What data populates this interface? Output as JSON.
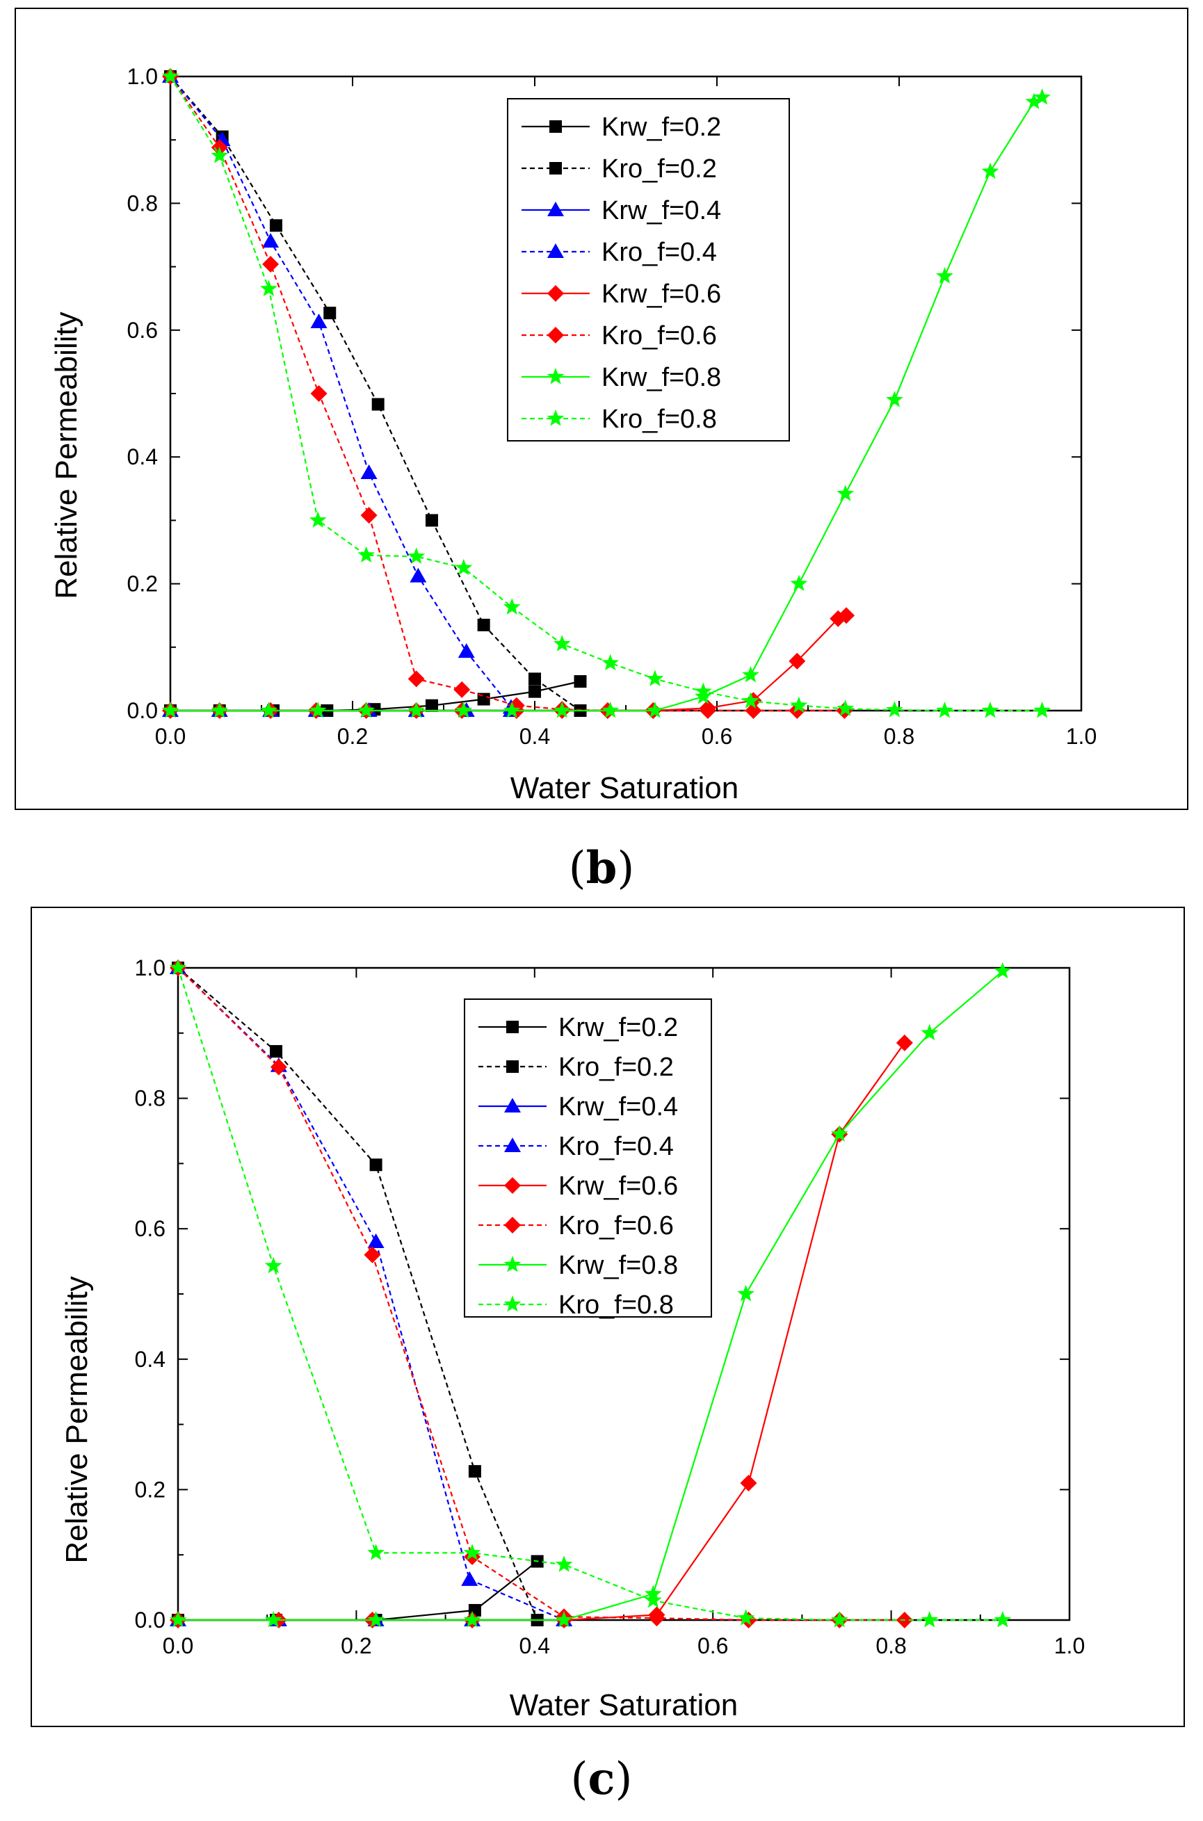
{
  "chart_data": [
    {
      "id": "b",
      "type": "line",
      "panel_label": "(b)",
      "panel_letter": "b",
      "xlabel": "Water Saturation",
      "ylabel": "Relative Permeability",
      "xlim": [
        0,
        1
      ],
      "ylim": [
        0,
        1
      ],
      "xticks": [
        "0.0",
        "0.2",
        "0.4",
        "0.6",
        "0.8",
        "1.0"
      ],
      "yticks": [
        "0.0",
        "0.2",
        "0.4",
        "0.6",
        "0.8",
        "1.0"
      ],
      "legend_position": "top-center",
      "series": [
        {
          "name": "Krw_f=0.2",
          "color": "#000000",
          "marker": "square",
          "dash": "solid",
          "x": [
            0.0,
            0.054,
            0.113,
            0.172,
            0.224,
            0.287,
            0.344,
            0.4,
            0.45
          ],
          "y": [
            0.0,
            0.0,
            0.0,
            0.0,
            0.002,
            0.008,
            0.018,
            0.03,
            0.046
          ]
        },
        {
          "name": "Kro_f=0.2",
          "color": "#000000",
          "marker": "square",
          "dash": "dashed",
          "x": [
            0.0,
            0.057,
            0.116,
            0.175,
            0.228,
            0.287,
            0.344,
            0.4,
            0.45
          ],
          "y": [
            1.0,
            0.905,
            0.765,
            0.627,
            0.483,
            0.3,
            0.135,
            0.05,
            0.0
          ]
        },
        {
          "name": "Krw_f=0.4",
          "color": "#0000ff",
          "marker": "triangle",
          "dash": "solid",
          "x": [
            0.0,
            0.054,
            0.11,
            0.16,
            0.218,
            0.27,
            0.325,
            0.374
          ],
          "y": [
            0.0,
            0.0,
            0.0,
            0.0,
            0.0,
            0.0,
            0.0,
            0.0
          ]
        },
        {
          "name": "Kro_f=0.4",
          "color": "#0000ff",
          "marker": "triangle",
          "dash": "dashed",
          "x": [
            0.0,
            0.057,
            0.11,
            0.163,
            0.218,
            0.272,
            0.325,
            0.374
          ],
          "y": [
            1.0,
            0.9,
            0.74,
            0.613,
            0.375,
            0.212,
            0.093,
            0.005
          ]
        },
        {
          "name": "Krw_f=0.6",
          "color": "#ff0000",
          "marker": "diamond",
          "dash": "solid",
          "x": [
            0.0,
            0.054,
            0.11,
            0.16,
            0.215,
            0.27,
            0.32,
            0.38,
            0.43,
            0.48,
            0.53,
            0.59,
            0.64,
            0.688,
            0.733,
            0.742
          ],
          "y": [
            0.0,
            0.0,
            0.0,
            0.0,
            0.0,
            0.0,
            0.0,
            0.0,
            0.0,
            0.0,
            0.0,
            0.004,
            0.016,
            0.078,
            0.145,
            0.15
          ]
        },
        {
          "name": "Kro_f=0.6",
          "color": "#ff0000",
          "marker": "diamond",
          "dash": "dashed",
          "x": [
            0.0,
            0.054,
            0.11,
            0.163,
            0.218,
            0.27,
            0.32,
            0.38,
            0.43,
            0.48,
            0.53,
            0.59,
            0.64,
            0.688,
            0.74
          ],
          "y": [
            1.0,
            0.888,
            0.704,
            0.5,
            0.308,
            0.05,
            0.033,
            0.008,
            0.002,
            0.0,
            0.0,
            0.0,
            0.0,
            0.0,
            0.0
          ]
        },
        {
          "name": "Krw_f=0.8",
          "color": "#00ff00",
          "marker": "star",
          "dash": "solid",
          "x": [
            0.0,
            0.054,
            0.108,
            0.162,
            0.215,
            0.27,
            0.322,
            0.375,
            0.43,
            0.483,
            0.532,
            0.585,
            0.637,
            0.69,
            0.741,
            0.795,
            0.85,
            0.9,
            0.948,
            0.957
          ],
          "y": [
            0.0,
            0.0,
            0.0,
            0.0,
            0.0,
            0.0,
            0.0,
            0.0,
            0.0,
            0.0,
            0.0,
            0.022,
            0.056,
            0.2,
            0.342,
            0.49,
            0.685,
            0.85,
            0.96,
            0.967
          ]
        },
        {
          "name": "Kro_f=0.8",
          "color": "#00ff00",
          "marker": "star",
          "dash": "dashed",
          "x": [
            0.0,
            0.054,
            0.108,
            0.162,
            0.215,
            0.27,
            0.322,
            0.375,
            0.43,
            0.483,
            0.532,
            0.585,
            0.637,
            0.69,
            0.741,
            0.795,
            0.85,
            0.9,
            0.957
          ],
          "y": [
            1.0,
            0.875,
            0.665,
            0.3,
            0.245,
            0.243,
            0.225,
            0.163,
            0.105,
            0.075,
            0.05,
            0.03,
            0.015,
            0.008,
            0.003,
            0.001,
            0.0,
            0.0,
            0.0
          ]
        }
      ]
    },
    {
      "id": "c",
      "type": "line",
      "panel_label": "(c)",
      "panel_letter": "c",
      "xlabel": "Water Saturation",
      "ylabel": "Relative Permeability",
      "xlim": [
        0,
        1
      ],
      "ylim": [
        0,
        1
      ],
      "xticks": [
        "0.0",
        "0.2",
        "0.4",
        "0.6",
        "0.8",
        "1.0"
      ],
      "yticks": [
        "0.0",
        "0.2",
        "0.4",
        "0.6",
        "0.8",
        "1.0"
      ],
      "legend_position": "top-center",
      "series": [
        {
          "name": "Krw_f=0.2",
          "color": "#000000",
          "marker": "square",
          "dash": "solid",
          "x": [
            0.0,
            0.11,
            0.222,
            0.333,
            0.403
          ],
          "y": [
            0.0,
            0.0,
            0.0,
            0.015,
            0.09
          ]
        },
        {
          "name": "Kro_f=0.2",
          "color": "#000000",
          "marker": "square",
          "dash": "dashed",
          "x": [
            0.0,
            0.11,
            0.222,
            0.333,
            0.403
          ],
          "y": [
            1.0,
            0.872,
            0.698,
            0.228,
            0.0
          ]
        },
        {
          "name": "Krw_f=0.4",
          "color": "#0000ff",
          "marker": "triangle",
          "dash": "solid",
          "x": [
            0.0,
            0.113,
            0.222,
            0.33,
            0.433
          ],
          "y": [
            0.0,
            0.0,
            0.0,
            0.0,
            0.0
          ]
        },
        {
          "name": "Kro_f=0.4",
          "color": "#0000ff",
          "marker": "triangle",
          "dash": "dashed",
          "x": [
            0.0,
            0.113,
            0.222,
            0.327,
            0.433
          ],
          "y": [
            1.0,
            0.85,
            0.58,
            0.062,
            0.0
          ]
        },
        {
          "name": "Krw_f=0.6",
          "color": "#ff0000",
          "marker": "diamond",
          "dash": "solid",
          "x": [
            0.0,
            0.113,
            0.218,
            0.33,
            0.433,
            0.537,
            0.64,
            0.742,
            0.815
          ],
          "y": [
            0.0,
            0.0,
            0.0,
            0.0,
            0.0,
            0.008,
            0.21,
            0.745,
            0.885
          ]
        },
        {
          "name": "Kro_f=0.6",
          "color": "#ff0000",
          "marker": "diamond",
          "dash": "dashed",
          "x": [
            0.0,
            0.113,
            0.218,
            0.33,
            0.433,
            0.537,
            0.64,
            0.742,
            0.815
          ],
          "y": [
            1.0,
            0.848,
            0.56,
            0.097,
            0.005,
            0.003,
            0.0,
            0.0,
            0.0
          ]
        },
        {
          "name": "Krw_f=0.8",
          "color": "#00ff00",
          "marker": "star",
          "dash": "solid",
          "x": [
            0.0,
            0.107,
            0.222,
            0.33,
            0.433,
            0.533,
            0.637,
            0.742,
            0.843,
            0.925
          ],
          "y": [
            0.0,
            0.0,
            0.0,
            0.0,
            0.0,
            0.04,
            0.5,
            0.745,
            0.9,
            0.995
          ]
        },
        {
          "name": "Kro_f=0.8",
          "color": "#00ff00",
          "marker": "star",
          "dash": "dashed",
          "x": [
            0.0,
            0.107,
            0.222,
            0.33,
            0.433,
            0.533,
            0.637,
            0.742,
            0.843,
            0.925
          ],
          "y": [
            1.0,
            0.543,
            0.103,
            0.103,
            0.085,
            0.03,
            0.003,
            0.0,
            0.0,
            0.0
          ]
        }
      ]
    }
  ]
}
